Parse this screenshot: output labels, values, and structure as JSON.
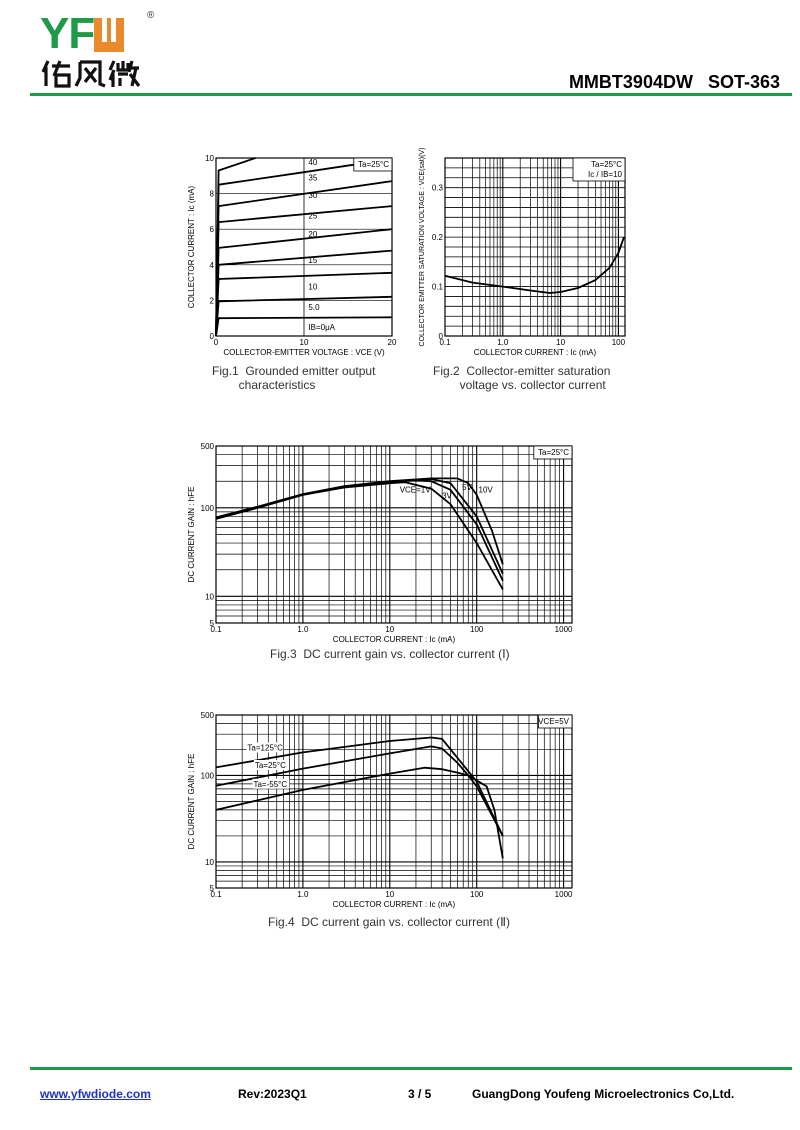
{
  "header": {
    "logo_text": "YFW",
    "logo_chinese": "佑风微",
    "logo_registered": "®",
    "title": "MMBT3904DW   SOT-363",
    "brand_green": "#1f9a48",
    "brand_orange": "#e98a2b"
  },
  "footer": {
    "url": "www.yfwdiode.com",
    "revision": "Rev:2023Q1",
    "page": "3 / 5",
    "company": "GuangDong Youfeng Microelectronics Co,Ltd."
  },
  "chart_data": [
    {
      "type": "line",
      "title": "Fig.1  Grounded emitter output\n        characteristics",
      "xlabel": "COLLECTOR-EMITTER  VOLTAGE : VCE (V)",
      "ylabel": "COLLECTOR  CURRENT : Ic (mA)",
      "xscale": "linear",
      "yscale": "linear",
      "xlim": [
        0,
        20
      ],
      "ylim": [
        0,
        10
      ],
      "xticks": [
        0,
        10,
        20
      ],
      "xtick_labels": [
        "0",
        "10",
        "20"
      ],
      "yticks": [
        0,
        2,
        4,
        6,
        8,
        10
      ],
      "ytick_labels": [
        "0",
        "2",
        "4",
        "6",
        "8",
        "10"
      ],
      "grid_x": [
        10
      ],
      "grid_y": [
        2,
        4,
        6,
        8
      ],
      "legend": {
        "text": [
          "Ta=25°C"
        ],
        "placement": "top-right-inside"
      },
      "series": [
        {
          "name": "IB=0μA",
          "x": [
            0,
            0.3,
            20
          ],
          "y": [
            0,
            1.0,
            1.05
          ]
        },
        {
          "name": "5.0",
          "x": [
            0,
            0.3,
            20
          ],
          "y": [
            0,
            1.95,
            2.2
          ]
        },
        {
          "name": "10",
          "x": [
            0,
            0.3,
            20
          ],
          "y": [
            0,
            3.2,
            3.55
          ]
        },
        {
          "name": "15",
          "x": [
            0,
            0.3,
            20
          ],
          "y": [
            0,
            4.0,
            4.8
          ]
        },
        {
          "name": "20",
          "x": [
            0,
            0.3,
            20
          ],
          "y": [
            0,
            4.95,
            6.0
          ]
        },
        {
          "name": "25",
          "x": [
            0,
            0.3,
            20
          ],
          "y": [
            0,
            6.4,
            7.3
          ]
        },
        {
          "name": "30",
          "x": [
            0,
            0.3,
            20
          ],
          "y": [
            0,
            7.3,
            8.7
          ]
        },
        {
          "name": "35",
          "x": [
            0,
            0.3,
            10,
            20
          ],
          "y": [
            0,
            8.5,
            9.2,
            9.95
          ]
        },
        {
          "name": "40",
          "x": [
            0,
            0.3,
            4.5
          ],
          "y": [
            0,
            9.3,
            10
          ]
        }
      ],
      "annotations": [
        {
          "text": "40",
          "x": 10.5,
          "y": 9.6
        },
        {
          "text": "35",
          "x": 10.5,
          "y": 8.75
        },
        {
          "text": "30",
          "x": 10.5,
          "y": 7.75
        },
        {
          "text": "25",
          "x": 10.5,
          "y": 6.6
        },
        {
          "text": "20",
          "x": 10.5,
          "y": 5.55
        },
        {
          "text": "15",
          "x": 10.5,
          "y": 4.1
        },
        {
          "text": "10",
          "x": 10.5,
          "y": 2.6
        },
        {
          "text": "5.0",
          "x": 10.5,
          "y": 1.45
        },
        {
          "text": "IB=0μA",
          "x": 10.5,
          "y": 0.35
        }
      ]
    },
    {
      "type": "line",
      "title": "Fig.2  Collector-emitter saturation\n        voltage vs. collector current",
      "xlabel": "COLLECTOR  CURRENT : Ic (mA)",
      "ylabel": "COLLECTOR EMITTER SATURATION VOLTAGE : VCE(sat)(V)",
      "xscale": "log",
      "yscale": "linear",
      "xlim": [
        0.1,
        130
      ],
      "ylim": [
        0,
        0.36
      ],
      "xticks": [
        0.1,
        1,
        10,
        100
      ],
      "xtick_labels": [
        "0.1",
        "1.0",
        "10",
        "100"
      ],
      "yticks": [
        0,
        0.1,
        0.2,
        0.3
      ],
      "ytick_labels": [
        "0",
        "0.1",
        "0.2",
        "0.3"
      ],
      "grid_y_step": 0.02,
      "legend": {
        "text": [
          "Ta=25°C",
          "Ic / IB=10"
        ],
        "placement": "top-right-inside"
      },
      "series": [
        {
          "name": "VCE(sat)",
          "x": [
            0.1,
            0.3,
            1,
            3,
            6.5,
            10,
            20,
            40,
            70,
            100,
            125
          ],
          "y": [
            0.122,
            0.108,
            0.1,
            0.092,
            0.087,
            0.089,
            0.097,
            0.113,
            0.138,
            0.168,
            0.2
          ]
        }
      ],
      "annotations": []
    },
    {
      "type": "line",
      "title": "Fig.3  DC current gain vs. collector current (Ⅰ)",
      "xlabel": "COLLECTOR  CURRENT : Ic (mA)",
      "ylabel": "DC CURRENT GAIN : hFE",
      "xscale": "log",
      "yscale": "log",
      "xlim": [
        0.1,
        1250
      ],
      "ylim": [
        5,
        500
      ],
      "xticks": [
        0.1,
        1,
        10,
        100,
        1000
      ],
      "xtick_labels": [
        "0.1",
        "1.0",
        "10",
        "100",
        "1000"
      ],
      "yticks": [
        5,
        10,
        100,
        500
      ],
      "ytick_labels": [
        "5",
        "10",
        "100",
        "500"
      ],
      "legend": {
        "text": [
          "Ta=25°C"
        ],
        "placement": "top-right-inside"
      },
      "series": [
        {
          "name": "VCE=1V",
          "x": [
            0.1,
            0.3,
            1,
            3,
            10,
            15,
            30,
            50,
            100,
            200
          ],
          "y": [
            75,
            100,
            140,
            170,
            190,
            195,
            165,
            110,
            40,
            12
          ]
        },
        {
          "name": "3V",
          "x": [
            0.1,
            0.3,
            1,
            3,
            10,
            20,
            30,
            50,
            100,
            200
          ],
          "y": [
            76,
            101,
            141,
            172,
            195,
            205,
            200,
            160,
            65,
            15
          ]
        },
        {
          "name": "5V",
          "x": [
            0.1,
            0.3,
            1,
            3,
            10,
            30,
            50,
            100,
            200
          ],
          "y": [
            77,
            102,
            142,
            174,
            198,
            212,
            190,
            80,
            18
          ]
        },
        {
          "name": "10V",
          "x": [
            0.1,
            0.3,
            1,
            3,
            10,
            30,
            60,
            80,
            100,
            150,
            200
          ],
          "y": [
            78,
            103,
            143,
            176,
            200,
            215,
            215,
            190,
            140,
            55,
            23
          ]
        }
      ],
      "annotations": [
        {
          "text": "VCE=1V",
          "x": 13,
          "y": 150
        },
        {
          "text": "3V",
          "x": 40,
          "y": 128
        },
        {
          "text": "5V",
          "x": 68,
          "y": 160
        },
        {
          "text": "10V",
          "x": 105,
          "y": 150
        }
      ]
    },
    {
      "type": "line",
      "title": "Fig.4  DC current gain vs. collector current (Ⅱ)",
      "xlabel": "COLLECTOR  CURRENT : Ic (mA)",
      "ylabel": "DC CURRENT GAIN : hFE",
      "xscale": "log",
      "yscale": "log",
      "xlim": [
        0.1,
        1250
      ],
      "ylim": [
        5,
        500
      ],
      "xticks": [
        0.1,
        1,
        10,
        100,
        1000
      ],
      "xtick_labels": [
        "0.1",
        "1.0",
        "10",
        "100",
        "1000"
      ],
      "yticks": [
        5,
        10,
        100,
        500
      ],
      "ytick_labels": [
        "5",
        "10",
        "100",
        "500"
      ],
      "legend": {
        "text": [
          "VCE=5V"
        ],
        "placement": "top-right-inside"
      },
      "series": [
        {
          "name": "Ta=125°C",
          "x": [
            0.1,
            1,
            10,
            30,
            40,
            60,
            100,
            200
          ],
          "y": [
            124,
            185,
            250,
            275,
            265,
            160,
            85,
            20
          ]
        },
        {
          "name": "Ta=25°C",
          "x": [
            0.1,
            1,
            10,
            30,
            40,
            60,
            80,
            100,
            200
          ],
          "y": [
            76,
            120,
            180,
            217,
            205,
            140,
            100,
            75,
            20
          ]
        },
        {
          "name": "Ta=-55°C",
          "x": [
            0.1,
            1,
            10,
            25,
            40,
            60,
            80,
            130,
            160,
            200
          ],
          "y": [
            40,
            68,
            105,
            123,
            118,
            108,
            100,
            75,
            40,
            11
          ]
        }
      ],
      "annotations": [
        {
          "text": "Ta=125°C",
          "x": 0.23,
          "y": 195,
          "boxed": true
        },
        {
          "text": "Ta=25°C",
          "x": 0.28,
          "y": 122,
          "boxed": true
        },
        {
          "text": "Ta=-55°C",
          "x": 0.27,
          "y": 74,
          "boxed": true
        }
      ]
    }
  ]
}
